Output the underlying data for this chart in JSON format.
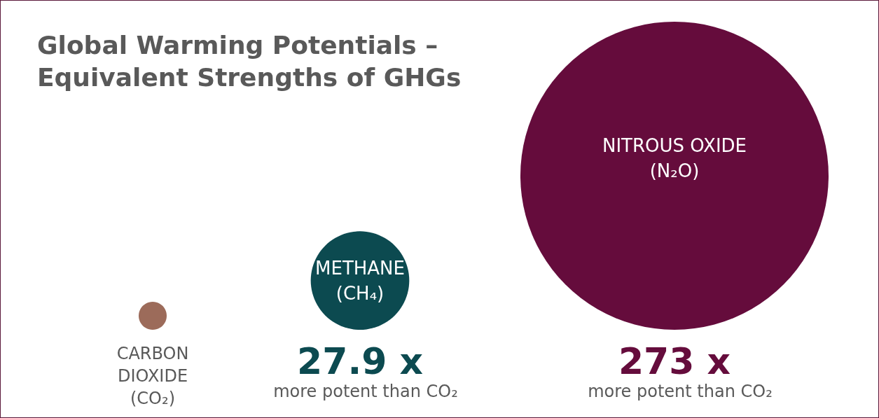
{
  "chart_data": {
    "type": "other",
    "title": "Global Warming Potentials –\nEquivalent Strengths of GHGs",
    "categories": [
      "CARBON\nDIOXIDE\n(CO₂)",
      "METHANE\n(CH₄)",
      "NITROUS OXIDE\n(N₂O)"
    ],
    "values": [
      null,
      27.9,
      273
    ],
    "value_labels": [
      null,
      "27.9 x",
      "273 x"
    ],
    "colors": [
      "#9c6b5a",
      "#0c4a50",
      "#650c3c"
    ],
    "annotations": [
      "more potent than CO₂",
      "more potent than CO₂"
    ]
  }
}
